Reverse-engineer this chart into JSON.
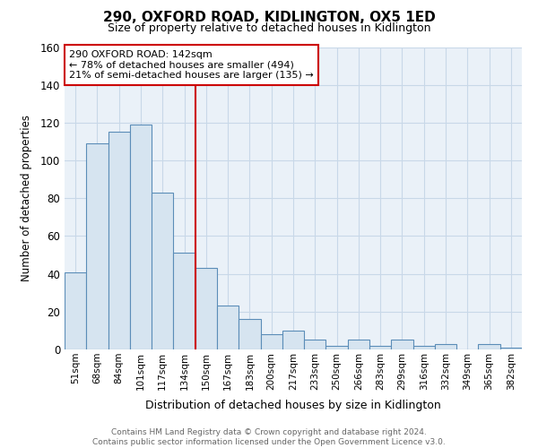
{
  "title": "290, OXFORD ROAD, KIDLINGTON, OX5 1ED",
  "subtitle": "Size of property relative to detached houses in Kidlington",
  "xlabel": "Distribution of detached houses by size in Kidlington",
  "ylabel": "Number of detached properties",
  "footer_line1": "Contains HM Land Registry data © Crown copyright and database right 2024.",
  "footer_line2": "Contains public sector information licensed under the Open Government Licence v3.0.",
  "bar_labels": [
    "51sqm",
    "68sqm",
    "84sqm",
    "101sqm",
    "117sqm",
    "134sqm",
    "150sqm",
    "167sqm",
    "183sqm",
    "200sqm",
    "217sqm",
    "233sqm",
    "250sqm",
    "266sqm",
    "283sqm",
    "299sqm",
    "316sqm",
    "332sqm",
    "349sqm",
    "365sqm",
    "382sqm"
  ],
  "bar_values": [
    41,
    109,
    115,
    119,
    83,
    51,
    43,
    23,
    16,
    8,
    10,
    5,
    2,
    5,
    2,
    5,
    2,
    3,
    0,
    3,
    1
  ],
  "bar_color": "#d6e4f0",
  "bar_edge_color": "#5b8db8",
  "annotation_title": "290 OXFORD ROAD: 142sqm",
  "annotation_line1": "← 78% of detached houses are smaller (494)",
  "annotation_line2": "21% of semi-detached houses are larger (135) →",
  "reference_line_x": 5.5,
  "reference_line_color": "#cc0000",
  "ylim": [
    0,
    160
  ],
  "yticks": [
    0,
    20,
    40,
    60,
    80,
    100,
    120,
    140,
    160
  ],
  "annotation_box_color": "#cc0000",
  "annotation_box_fill": "#ffffff",
  "plot_bg_color": "#eaf1f8",
  "grid_color": "#c8d8e8"
}
